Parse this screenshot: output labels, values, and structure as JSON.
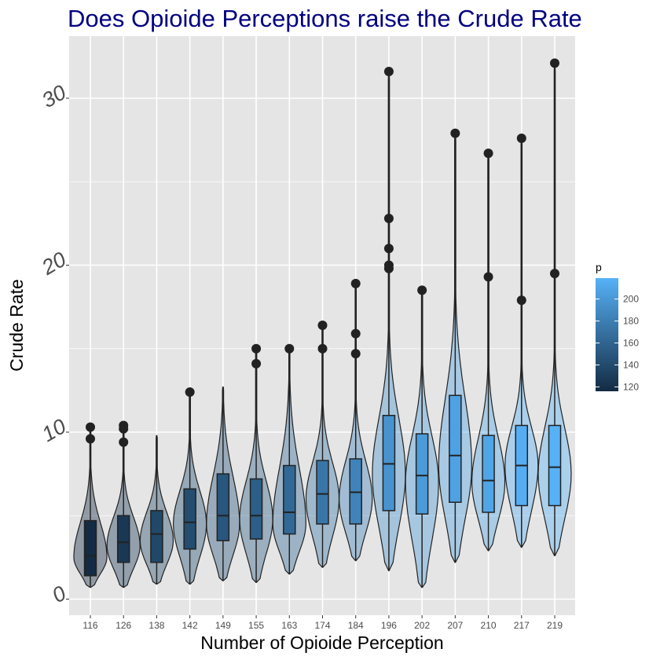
{
  "chart_data": {
    "type": "violin",
    "title": "Does Opioide Perceptions raise the Crude Rate",
    "xlabel": "Number of Opioide Perception",
    "ylabel": "Crude Rate",
    "ylim": [
      0,
      33
    ],
    "y_ticks": [
      "0",
      "10",
      "20",
      "30"
    ],
    "grid": true,
    "background": "#e5e5e5",
    "title_color": "#000080",
    "categories": [
      "116",
      "126",
      "138",
      "142",
      "149",
      "155",
      "163",
      "174",
      "184",
      "196",
      "202",
      "207",
      "210",
      "217",
      "219"
    ],
    "series": [
      {
        "cat": "116",
        "min": 0.7,
        "q1": 1.4,
        "median": 2.6,
        "q3": 4.7,
        "max": 8.6,
        "outliers": [
          9.6,
          10.3
        ],
        "mode": 2.5
      },
      {
        "cat": "126",
        "min": 0.7,
        "q1": 2.2,
        "median": 3.4,
        "q3": 5.0,
        "max": 7.5,
        "outliers": [
          9.4,
          10.2,
          10.4
        ],
        "mode": 3.2
      },
      {
        "cat": "138",
        "min": 0.9,
        "q1": 2.2,
        "median": 3.9,
        "q3": 5.3,
        "max": 9.8,
        "outliers": [],
        "mode": 3.5
      },
      {
        "cat": "142",
        "min": 0.9,
        "q1": 3.0,
        "median": 4.6,
        "q3": 6.6,
        "max": 11.0,
        "outliers": [
          12.4
        ],
        "mode": 4.5
      },
      {
        "cat": "149",
        "min": 1.1,
        "q1": 3.5,
        "median": 5.0,
        "q3": 7.5,
        "max": 12.7,
        "outliers": [],
        "mode": 4.5
      },
      {
        "cat": "155",
        "min": 1.0,
        "q1": 3.6,
        "median": 5.0,
        "q3": 7.2,
        "max": 11.5,
        "outliers": [
          14.1,
          15.0
        ],
        "mode": 4.8
      },
      {
        "cat": "163",
        "min": 1.5,
        "q1": 3.9,
        "median": 5.2,
        "q3": 8.0,
        "max": 14.0,
        "outliers": [
          15.0
        ],
        "mode": 4.5
      },
      {
        "cat": "174",
        "min": 1.9,
        "q1": 4.5,
        "median": 6.3,
        "q3": 8.3,
        "max": 13.7,
        "outliers": [
          15.0,
          16.4
        ],
        "mode": 6.0
      },
      {
        "cat": "184",
        "min": 2.3,
        "q1": 4.5,
        "median": 6.4,
        "q3": 8.4,
        "max": 14.0,
        "outliers": [
          14.7,
          15.9,
          18.9
        ],
        "mode": 6.0
      },
      {
        "cat": "196",
        "min": 1.7,
        "q1": 5.3,
        "median": 8.1,
        "q3": 11.0,
        "max": 18.8,
        "outliers": [
          19.8,
          20.0,
          21.0,
          22.8,
          31.6
        ],
        "mode": 7.5
      },
      {
        "cat": "202",
        "min": 0.7,
        "q1": 5.1,
        "median": 7.4,
        "q3": 9.9,
        "max": 15.6,
        "outliers": [
          18.5
        ],
        "mode": 7.0
      },
      {
        "cat": "207",
        "min": 2.2,
        "q1": 5.8,
        "median": 8.6,
        "q3": 12.2,
        "max": 18.5,
        "outliers": [
          27.9
        ],
        "mode": 8.0
      },
      {
        "cat": "210",
        "min": 2.9,
        "q1": 5.2,
        "median": 7.1,
        "q3": 9.8,
        "max": 14.5,
        "outliers": [
          19.3,
          26.7
        ],
        "mode": 7.0
      },
      {
        "cat": "217",
        "min": 3.1,
        "q1": 5.6,
        "median": 8.0,
        "q3": 10.4,
        "max": 16.3,
        "outliers": [
          17.9,
          27.6
        ],
        "mode": 8.0
      },
      {
        "cat": "219",
        "min": 2.6,
        "q1": 5.6,
        "median": 7.9,
        "q3": 10.4,
        "max": 16.3,
        "outliers": [
          19.5,
          32.1
        ],
        "mode": 7.5
      }
    ],
    "legend": {
      "title": "p",
      "placement": "right",
      "ticks": [
        "200",
        "180",
        "160",
        "140",
        "120"
      ],
      "range": [
        116,
        219
      ],
      "color_low": "#132b43",
      "color_high": "#56b1f7"
    }
  }
}
